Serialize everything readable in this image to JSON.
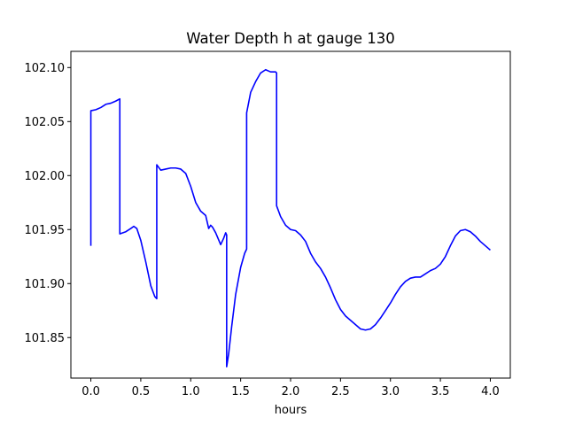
{
  "chart_data": {
    "type": "line",
    "title": "Water Depth h at gauge 130",
    "xlabel": "hours",
    "ylabel": "",
    "xlim": [
      -0.2,
      4.2
    ],
    "ylim": [
      101.8125,
      102.115
    ],
    "xticks": [
      "0.0",
      "0.5",
      "1.0",
      "1.5",
      "2.0",
      "2.5",
      "3.0",
      "3.5",
      "4.0"
    ],
    "yticks": [
      "101.85",
      "101.90",
      "101.95",
      "102.00",
      "102.05",
      "102.10"
    ],
    "grid": false,
    "colors": {
      "series": "#0000ff",
      "frame": "#000000"
    },
    "series": [
      {
        "x": [
          0.0,
          0.0,
          0.05,
          0.1,
          0.15,
          0.2,
          0.25,
          0.29,
          0.29,
          0.35,
          0.4,
          0.43,
          0.46,
          0.5,
          0.55,
          0.6,
          0.64,
          0.66,
          0.66,
          0.7,
          0.75,
          0.8,
          0.85,
          0.9,
          0.95,
          1.0,
          1.05,
          1.1,
          1.15,
          1.18,
          1.2,
          1.22,
          1.25,
          1.3,
          1.33,
          1.35,
          1.36,
          1.36,
          1.38,
          1.41,
          1.45,
          1.5,
          1.54,
          1.56,
          1.56,
          1.6,
          1.65,
          1.7,
          1.75,
          1.8,
          1.85,
          1.86,
          1.86,
          1.9,
          1.95,
          2.0,
          2.05,
          2.1,
          2.15,
          2.2,
          2.25,
          2.3,
          2.35,
          2.4,
          2.45,
          2.5,
          2.55,
          2.6,
          2.65,
          2.7,
          2.75,
          2.8,
          2.85,
          2.9,
          2.95,
          3.0,
          3.05,
          3.1,
          3.15,
          3.2,
          3.25,
          3.3,
          3.35,
          3.4,
          3.45,
          3.5,
          3.55,
          3.6,
          3.65,
          3.7,
          3.75,
          3.8,
          3.85,
          3.9,
          3.95,
          4.0
        ],
        "y": [
          101.935,
          102.06,
          102.061,
          102.063,
          102.066,
          102.067,
          102.069,
          102.071,
          101.946,
          101.948,
          101.951,
          101.953,
          101.951,
          101.94,
          101.92,
          101.898,
          101.888,
          101.886,
          102.01,
          102.005,
          102.006,
          102.007,
          102.007,
          102.006,
          102.002,
          101.99,
          101.975,
          101.967,
          101.963,
          101.951,
          101.954,
          101.952,
          101.947,
          101.936,
          101.942,
          101.947,
          101.945,
          101.823,
          101.835,
          101.86,
          101.89,
          101.915,
          101.928,
          101.932,
          102.058,
          102.077,
          102.087,
          102.095,
          102.098,
          102.096,
          102.096,
          102.095,
          101.972,
          101.962,
          101.954,
          101.95,
          101.949,
          101.945,
          101.939,
          101.928,
          101.92,
          101.914,
          101.906,
          101.896,
          101.885,
          101.876,
          101.87,
          101.866,
          101.862,
          101.858,
          101.857,
          101.858,
          101.862,
          101.868,
          101.875,
          101.882,
          101.89,
          101.897,
          101.902,
          101.905,
          101.906,
          101.906,
          101.909,
          101.912,
          101.914,
          101.918,
          101.925,
          101.935,
          101.944,
          101.949,
          101.95,
          101.948,
          101.944,
          101.939,
          101.935,
          101.931
        ]
      }
    ]
  }
}
